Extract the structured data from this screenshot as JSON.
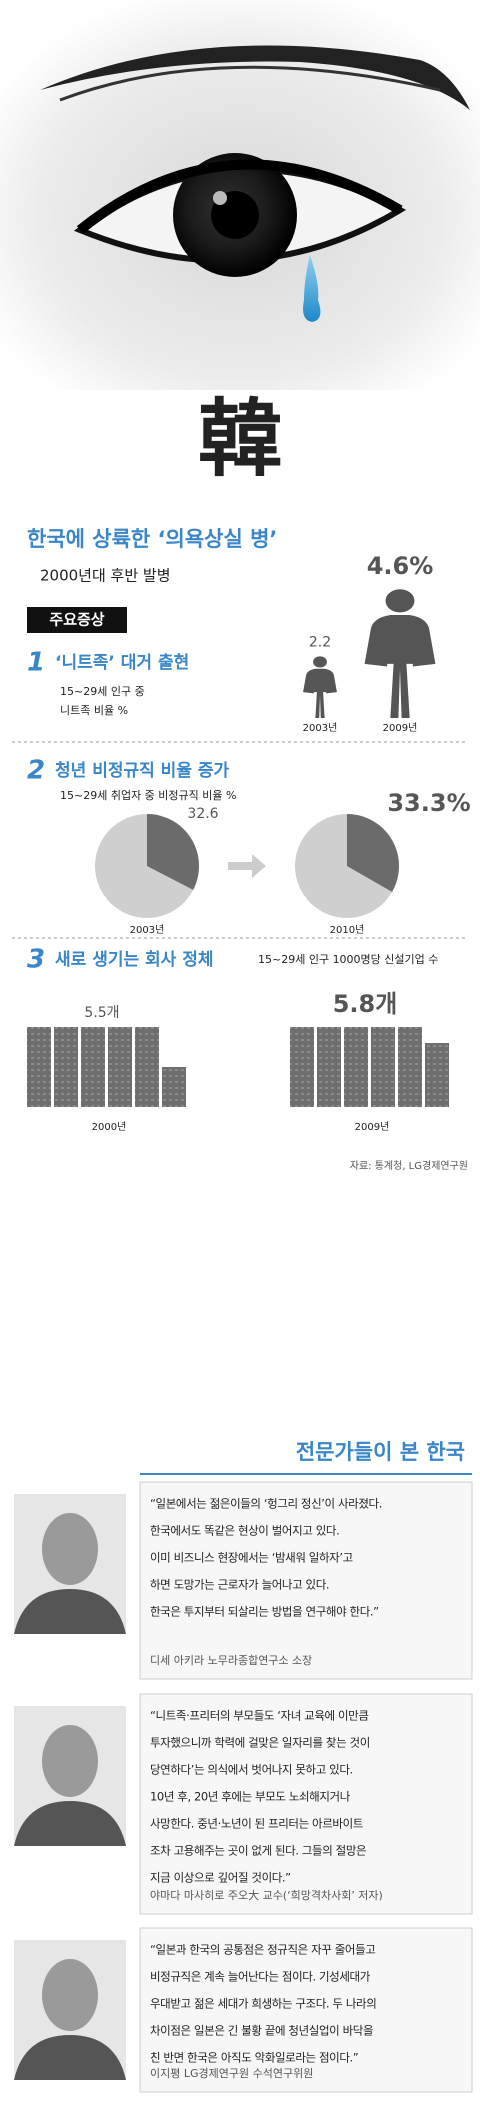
{
  "title_char": "韓",
  "title": "한국에 상륙한 ‘의욕상실 병’",
  "subtitle": "2000년대 후반 발병",
  "symptoms_label": "주요증상",
  "chart_data": [
    {
      "type": "figure",
      "number": "1",
      "title": "‘니트족’ 대거 출현",
      "subtitle": [
        "15~29세 인구 중",
        "니트족 비율 %"
      ],
      "categories": [
        "2003년",
        "2009년"
      ],
      "values": [
        2.2,
        4.6
      ],
      "value_labels": [
        "2.2",
        "4.6%"
      ],
      "color": "#555555"
    },
    {
      "type": "pie",
      "number": "2",
      "title": "청년 비정규직 비율 증가",
      "subtitle": "15~29세 취업자 중 비정규직 비율 %",
      "categories": [
        "2003년",
        "2010년"
      ],
      "values": [
        32.6,
        33.3
      ],
      "value_labels": [
        "32.6",
        "33.3%"
      ],
      "color": "#6b6b6b"
    },
    {
      "type": "building",
      "number": "3",
      "title": "새로 생기는 회사 정체",
      "subtitle": "15~29세 인구 1000명당 신설기업 수",
      "categories": [
        "2000년",
        "2009년"
      ],
      "values": [
        5.5,
        5.8
      ],
      "value_labels": [
        "5.5개",
        "5.8개"
      ],
      "color": "#6e6e6e"
    }
  ],
  "source": "자료: 통계청, LG경제연구원",
  "experts": {
    "title": "전문가들이 본 한국",
    "items": [
      {
        "quote": [
          "“일본에서는 젊은이들의 ‘헝그리 정신’이 사라졌다.",
          "한국에서도 똑같은 현상이 벌어지고 있다.",
          "이미 비즈니스 현장에서는 ‘밤새워 일하자’고",
          "하면 도망가는 근로자가 늘어나고 있다.",
          "한국은 투지부터 되살리는 방법을 연구해야 한다.”"
        ],
        "name": "디세 아키라 노무라종합연구소 소장"
      },
      {
        "quote": [
          "“니트족·프리터의 부모들도 ‘자녀 교육에 이만큼",
          "투자했으니까 학력에 걸맞은 일자리를 찾는 것이",
          "당연하다’는 의식에서 벗어나지 못하고 있다.",
          "10년 후, 20년 후에는 부모도 노쇠해지거나",
          "사망한다. 중년·노년이 된 프리터는 아르바이트",
          "조차 고용해주는 곳이 없게 된다. 그들의 절망은",
          "지금 이상으로 깊어질 것이다.”"
        ],
        "name": "야마다 마사히로 주오大 교수(‘희망격차사회’ 저자)"
      },
      {
        "quote": [
          "“일본과 한국의 공통점은 정규직은 자꾸 줄어들고",
          "비정규직은 계속 늘어난다는 점이다. 기성세대가",
          "우대받고 젊은 세대가 희생하는 구조다. 두 나라의",
          "차이점은 일본은 긴 불황 끝에 청년실업이 바닥을",
          "친 반면 한국은 아직도 악화일로라는 점이다.”"
        ],
        "name": "이지평 LG경제연구원 수석연구위원"
      }
    ]
  }
}
